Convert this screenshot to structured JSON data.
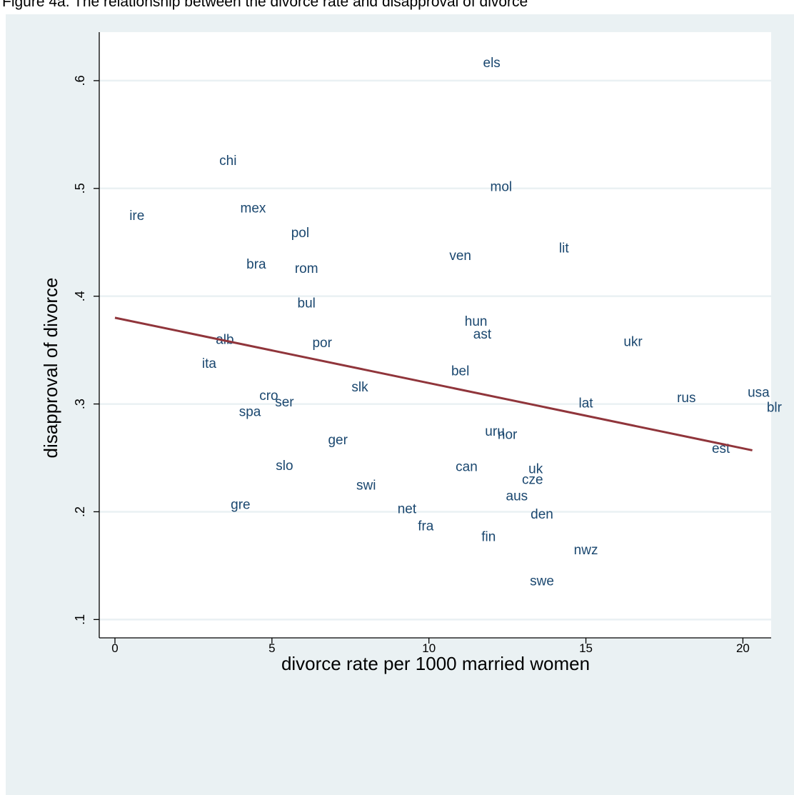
{
  "figure": {
    "title": "Figure 4a.  The relationship between the divorce rate and disapproval of divorce"
  },
  "chart_data": {
    "type": "scatter",
    "title": "Figure 4a.  The relationship between the divorce rate and disapproval of divorce",
    "xlabel": "divorce rate per 1000 married women",
    "ylabel": "disapproval of divorce",
    "xlim": [
      -0.5,
      20.9
    ],
    "ylim": [
      0.083,
      0.645
    ],
    "xticks": [
      0,
      5,
      10,
      15,
      20
    ],
    "xtick_labels": [
      "0",
      "5",
      "10",
      "15",
      "20"
    ],
    "yticks": [
      0.1,
      0.2,
      0.3,
      0.4,
      0.5,
      0.6
    ],
    "ytick_labels": [
      ".1",
      ".2",
      ".3",
      ".4",
      ".5",
      ".6"
    ],
    "grid": "horizontal",
    "legend": "none",
    "colors": {
      "outer_background": "#eaf1f3",
      "plot_background": "#ffffff",
      "gridline": "#eaf1f3",
      "axis": "#000000",
      "label_text": "#1a476f",
      "fit_line": "#90353b"
    },
    "points": [
      {
        "label": "els",
        "x": 12.0,
        "y": 0.616
      },
      {
        "label": "chi",
        "x": 3.6,
        "y": 0.525
      },
      {
        "label": "mol",
        "x": 12.3,
        "y": 0.501
      },
      {
        "label": "mex",
        "x": 4.4,
        "y": 0.481
      },
      {
        "label": "ire",
        "x": 0.7,
        "y": 0.474
      },
      {
        "label": "pol",
        "x": 5.9,
        "y": 0.458
      },
      {
        "label": "lit",
        "x": 14.3,
        "y": 0.444
      },
      {
        "label": "ven",
        "x": 11.0,
        "y": 0.437
      },
      {
        "label": "bra",
        "x": 4.5,
        "y": 0.429
      },
      {
        "label": "rom",
        "x": 6.1,
        "y": 0.425
      },
      {
        "label": "bul",
        "x": 6.1,
        "y": 0.393
      },
      {
        "label": "hun",
        "x": 11.5,
        "y": 0.376
      },
      {
        "label": "ast",
        "x": 11.7,
        "y": 0.364
      },
      {
        "label": "alb",
        "x": 3.5,
        "y": 0.359
      },
      {
        "label": "ukr",
        "x": 16.5,
        "y": 0.357
      },
      {
        "label": "por",
        "x": 6.6,
        "y": 0.356
      },
      {
        "label": "ita",
        "x": 3.0,
        "y": 0.337
      },
      {
        "label": "bel",
        "x": 11.0,
        "y": 0.33
      },
      {
        "label": "slk",
        "x": 7.8,
        "y": 0.315
      },
      {
        "label": "usa",
        "x": 20.5,
        "y": 0.31
      },
      {
        "label": "cro",
        "x": 4.9,
        "y": 0.307
      },
      {
        "label": "rus",
        "x": 18.2,
        "y": 0.305
      },
      {
        "label": "ser",
        "x": 5.4,
        "y": 0.301
      },
      {
        "label": "lat",
        "x": 15.0,
        "y": 0.3
      },
      {
        "label": "blr",
        "x": 21.0,
        "y": 0.296
      },
      {
        "label": "spa",
        "x": 4.3,
        "y": 0.292
      },
      {
        "label": "uru",
        "x": 12.1,
        "y": 0.274
      },
      {
        "label": "nor",
        "x": 12.5,
        "y": 0.271
      },
      {
        "label": "ger",
        "x": 7.1,
        "y": 0.266
      },
      {
        "label": "est",
        "x": 19.3,
        "y": 0.258
      },
      {
        "label": "slo",
        "x": 5.4,
        "y": 0.242
      },
      {
        "label": "can",
        "x": 11.2,
        "y": 0.241
      },
      {
        "label": "uk",
        "x": 13.4,
        "y": 0.239
      },
      {
        "label": "cze",
        "x": 13.3,
        "y": 0.229
      },
      {
        "label": "swi",
        "x": 8.0,
        "y": 0.224
      },
      {
        "label": "aus",
        "x": 12.8,
        "y": 0.214
      },
      {
        "label": "gre",
        "x": 4.0,
        "y": 0.206
      },
      {
        "label": "net",
        "x": 9.3,
        "y": 0.202
      },
      {
        "label": "den",
        "x": 13.6,
        "y": 0.197
      },
      {
        "label": "fra",
        "x": 9.9,
        "y": 0.186
      },
      {
        "label": "fin",
        "x": 11.9,
        "y": 0.176
      },
      {
        "label": "nwz",
        "x": 15.0,
        "y": 0.164
      },
      {
        "label": "swe",
        "x": 13.6,
        "y": 0.135
      }
    ],
    "fit_line": {
      "x": [
        0,
        20.3
      ],
      "y": [
        0.38,
        0.257
      ]
    }
  }
}
